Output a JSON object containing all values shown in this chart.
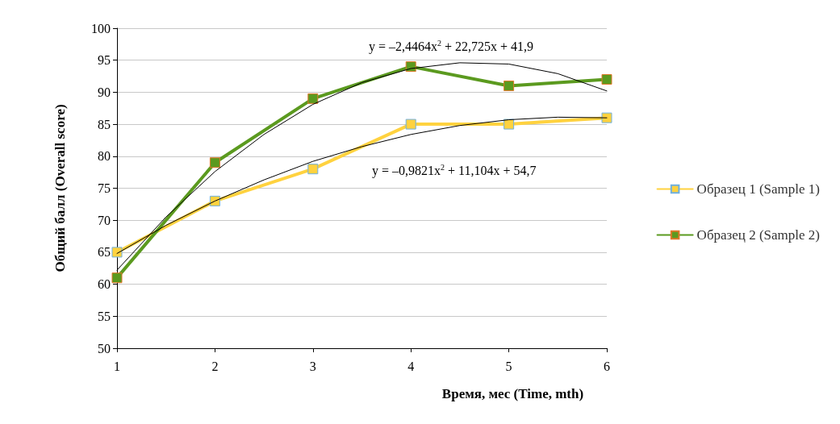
{
  "chart_data": {
    "type": "line",
    "xlabel": "Время, мес (Time, mth)",
    "ylabel": "Общий балл (Overall score)",
    "x": [
      1,
      2,
      3,
      4,
      5,
      6
    ],
    "series": [
      {
        "name": "Образец 1 (Sample 1)",
        "color": "#ffd23f",
        "values": [
          65,
          73,
          78,
          85,
          85,
          86
        ]
      },
      {
        "name": "Образец 2 (Sample 2)",
        "color": "#5b9a1f",
        "values": [
          61,
          79,
          89,
          94,
          91,
          92
        ]
      },
      {
        "type": "line",
        "color": "#000000",
        "x": [
          1,
          1.5,
          2,
          2.5,
          3,
          3.5,
          4,
          4.5,
          5,
          5.5,
          6
        ],
        "values": [
          64.8,
          69.2,
          73.0,
          76.3,
          79.2,
          81.5,
          83.4,
          84.8,
          85.7,
          86.1,
          86.0
        ],
        "marker": "none"
      },
      {
        "type": "line",
        "color": "#000000",
        "x": [
          1,
          1.5,
          2,
          2.5,
          3,
          3.5,
          4,
          4.5,
          5,
          5.5,
          6
        ],
        "values": [
          62.2,
          70.5,
          77.6,
          83.4,
          88.1,
          91.5,
          93.7,
          94.6,
          94.4,
          92.9,
          90.2
        ],
        "marker": "none"
      }
    ],
    "annotations": [
      "y = –2,4464x$^{2}$ + 22,725x + 41,9",
      "y = –0,9821x$^{2}$ + 11,104x + 54,7"
    ],
    "xlim": [
      1,
      6
    ],
    "xticks": [
      1,
      2,
      3,
      4,
      5,
      6
    ],
    "ylim": [
      50,
      100
    ],
    "yticks": [
      50,
      55,
      60,
      65,
      70,
      75,
      80,
      85,
      90,
      95,
      100
    ],
    "grid": "y",
    "legend": "right",
    "marker": "square",
    "line_style": "solid"
  }
}
